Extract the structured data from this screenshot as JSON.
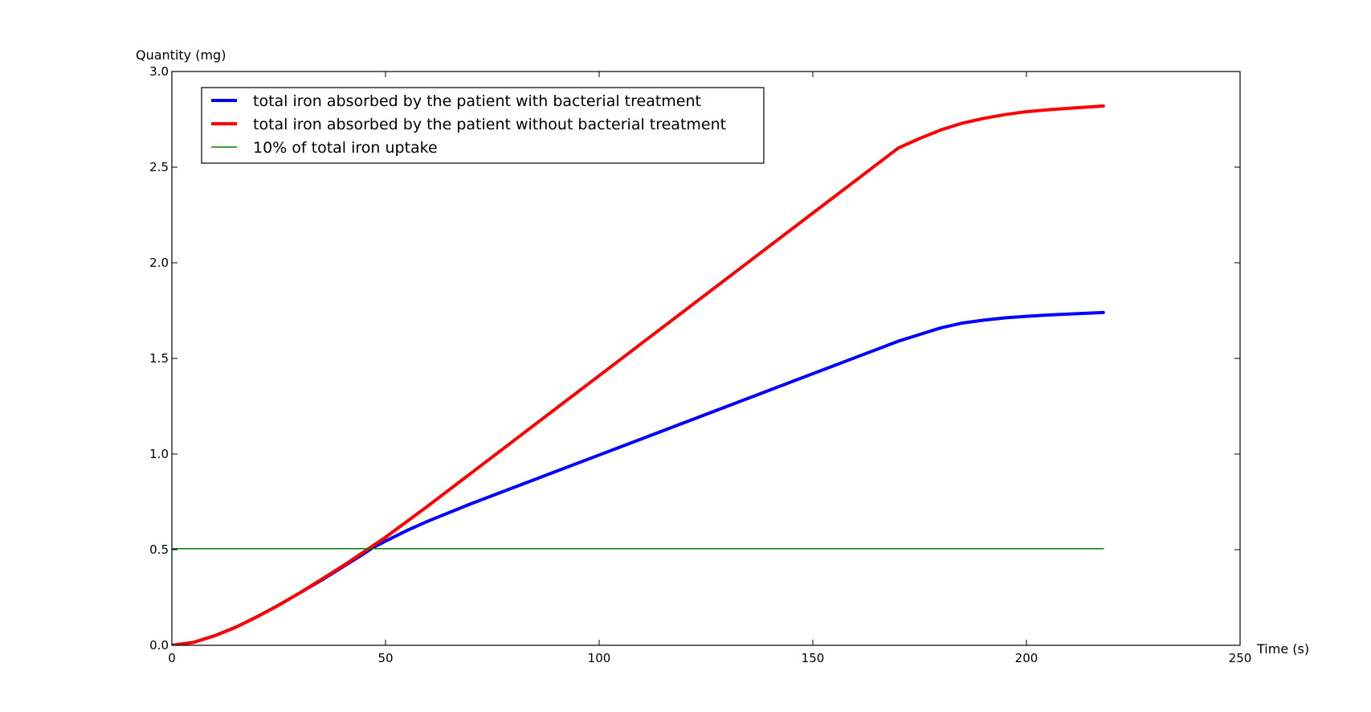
{
  "chart_data": {
    "type": "line",
    "title": "",
    "xlabel": "Time (s)",
    "ylabel": "Quantity (mg)",
    "xlim": [
      0,
      250
    ],
    "ylim": [
      0.0,
      3.0
    ],
    "xticks": [
      0,
      50,
      100,
      150,
      200,
      250
    ],
    "xtick_labels": [
      "0",
      "50",
      "100",
      "150",
      "200",
      "250"
    ],
    "yticks": [
      0.0,
      0.5,
      1.0,
      1.5,
      2.0,
      2.5,
      3.0
    ],
    "ytick_labels": [
      "0.0",
      "0.5",
      "1.0",
      "1.5",
      "2.0",
      "2.5",
      "3.0"
    ],
    "grid": false,
    "legend_position": "top-left",
    "series": [
      {
        "name": "total iron absorbed by the patient with bacterial treatment",
        "color": "#0000ff",
        "style": "solid-thick",
        "x": [
          0,
          5,
          10,
          15,
          20,
          25,
          30,
          35,
          40,
          45,
          47,
          50,
          55,
          60,
          70,
          80,
          90,
          100,
          110,
          120,
          130,
          140,
          150,
          160,
          170,
          175,
          180,
          185,
          190,
          195,
          200,
          205,
          210,
          218
        ],
        "y": [
          0.0,
          0.015,
          0.05,
          0.095,
          0.15,
          0.21,
          0.275,
          0.34,
          0.41,
          0.48,
          0.51,
          0.545,
          0.6,
          0.65,
          0.74,
          0.825,
          0.91,
          0.995,
          1.08,
          1.165,
          1.25,
          1.335,
          1.42,
          1.505,
          1.59,
          1.625,
          1.66,
          1.685,
          1.7,
          1.712,
          1.72,
          1.727,
          1.732,
          1.74
        ]
      },
      {
        "name": "total iron absorbed by the patient without bacterial treatment",
        "color": "#ff0000",
        "style": "solid-thick",
        "x": [
          0,
          5,
          10,
          15,
          20,
          25,
          30,
          35,
          40,
          45,
          50,
          60,
          70,
          80,
          90,
          100,
          110,
          120,
          130,
          140,
          150,
          160,
          170,
          175,
          180,
          185,
          190,
          195,
          200,
          205,
          210,
          218
        ],
        "y": [
          0.0,
          0.015,
          0.05,
          0.095,
          0.15,
          0.21,
          0.275,
          0.345,
          0.415,
          0.49,
          0.565,
          0.73,
          0.9,
          1.07,
          1.24,
          1.41,
          1.58,
          1.75,
          1.92,
          2.09,
          2.26,
          2.43,
          2.6,
          2.65,
          2.695,
          2.73,
          2.755,
          2.775,
          2.79,
          2.8,
          2.808,
          2.82
        ]
      },
      {
        "name": "10% of total iron uptake",
        "color": "#008000",
        "style": "solid-thin",
        "x": [
          0,
          218
        ],
        "y": [
          0.505,
          0.505
        ]
      }
    ]
  }
}
